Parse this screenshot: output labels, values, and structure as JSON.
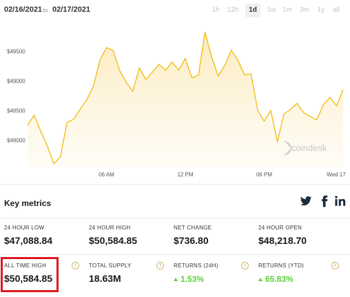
{
  "header": {
    "start_date": "02/16/2021",
    "separator": "to",
    "end_date": "02/17/2021",
    "ranges": [
      {
        "label": "1h"
      },
      {
        "label": "12h"
      },
      {
        "label": "1d",
        "active": true
      },
      {
        "label": "1w"
      },
      {
        "label": "1m"
      },
      {
        "label": "3m"
      },
      {
        "label": "1y"
      },
      {
        "label": "all"
      }
    ]
  },
  "chart_data": {
    "type": "area",
    "y_ticks": [
      "$49500",
      "$49000",
      "$48500",
      "$48000"
    ],
    "x_ticks": [
      "06 AM",
      "12 PM",
      "06 PM",
      "Wed 17"
    ],
    "watermark": "coindesk",
    "ylim": [
      47550,
      49900
    ],
    "x_hours": [
      0,
      0.5,
      1,
      1.5,
      2,
      2.5,
      3,
      3.5,
      4,
      4.5,
      5,
      5.5,
      6,
      6.5,
      7,
      7.5,
      8,
      8.5,
      9,
      9.5,
      10,
      10.5,
      11,
      11.5,
      12,
      12.5,
      13,
      13.5,
      14,
      14.5,
      15,
      15.5,
      16,
      16.5,
      17,
      17.5,
      18,
      18.5,
      19,
      19.5,
      20,
      20.5,
      21,
      21.5,
      22,
      22.5,
      23,
      23.5,
      24
    ],
    "values": [
      48250,
      48420,
      48150,
      47900,
      47600,
      47720,
      48300,
      48350,
      48520,
      48680,
      48900,
      49350,
      49560,
      49520,
      49180,
      48980,
      48820,
      49220,
      49020,
      49150,
      49280,
      49180,
      49320,
      49180,
      49380,
      49050,
      49100,
      49820,
      49400,
      49080,
      49260,
      49520,
      49350,
      49100,
      49120,
      48500,
      48320,
      48500,
      47970,
      48440,
      48520,
      48620,
      48460,
      48400,
      48340,
      48600,
      48720,
      48580,
      48850
    ],
    "color": "#f2b90d",
    "fill_top": "#fbe9b5",
    "fill_bottom": "#fffaf0"
  },
  "metrics": {
    "title": "Key metrics",
    "social": [
      "twitter-icon",
      "facebook-icon",
      "linkedin-icon"
    ],
    "items": [
      {
        "label": "24 HOUR LOW",
        "value": "$47,088.84"
      },
      {
        "label": "24 HOUR HIGH",
        "value": "$50,584.85"
      },
      {
        "label": "NET CHANGE",
        "value": "$736.80"
      },
      {
        "label": "24 HOUR OPEN",
        "value": "$48,218.70"
      },
      {
        "label": "ALL TIME HIGH",
        "value": "$50,584.85"
      },
      {
        "label": "TOTAL SUPPLY",
        "value": "18.63M"
      },
      {
        "label": "RETURNS (24H)",
        "value": "1.53%"
      },
      {
        "label": "RETURNS (YTD)",
        "value": "65.83%"
      }
    ]
  }
}
